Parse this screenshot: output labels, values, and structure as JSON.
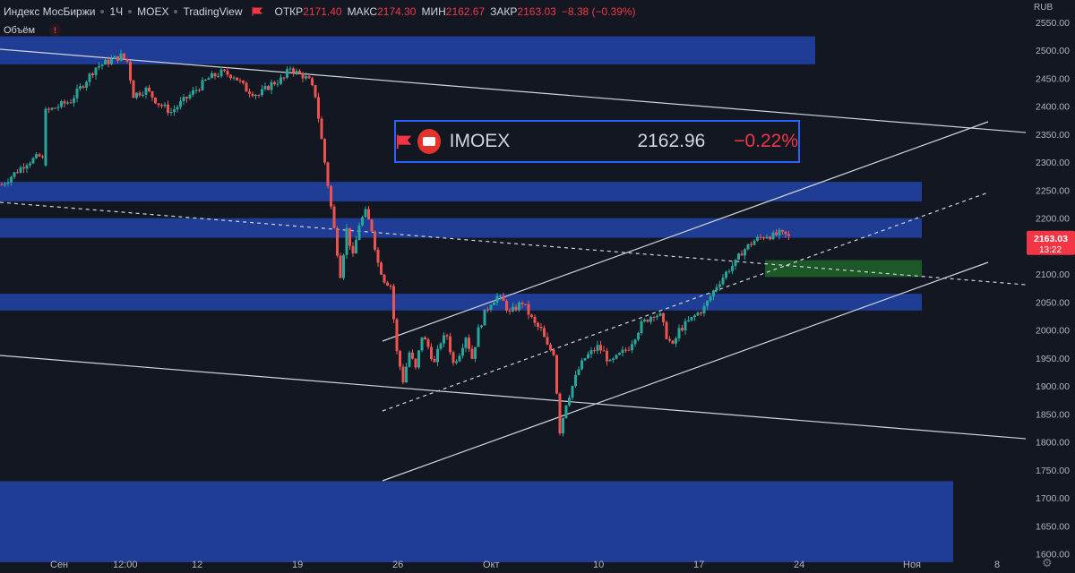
{
  "header": {
    "symbol_name": "Индекс МосБиржи",
    "interval": "1Ч",
    "exchange": "MOEX",
    "source": "TradingView",
    "ohlc": [
      {
        "label": "ОТКР",
        "value": "2171.40"
      },
      {
        "label": "МАКС",
        "value": "2174.30"
      },
      {
        "label": "МИН",
        "value": "2162.67"
      },
      {
        "label": "ЗАКР",
        "value": "2163.03"
      }
    ],
    "change": "−8.38 (−0.39%)",
    "volume_label": "Объём",
    "warning_glyph": "!"
  },
  "ticker_box": {
    "name": "IMOEX",
    "price": "2162.96",
    "change": "−0.22%"
  },
  "axis": {
    "currency": "RUB",
    "last_price": "2163.03",
    "countdown": "13:22",
    "settings_icon": "gear-icon"
  },
  "colors": {
    "background": "#131722",
    "zone": "#2244a8",
    "green_zone": "#1f5f2a",
    "up": "#26a69a",
    "down": "#ef5350",
    "trendline": "#d1d4dc",
    "price_label": "#f23645",
    "ticker_border": "#2962ff"
  },
  "chart_data": {
    "type": "candlestick",
    "title": "",
    "ylim": [
      1585,
      2590
    ],
    "ylabel": "",
    "xlabel": "",
    "grid": false,
    "y_ticks": [
      1600,
      1650,
      1700,
      1750,
      1800,
      1850,
      1900,
      1950,
      2000,
      2050,
      2100,
      2150,
      2200,
      2250,
      2300,
      2350,
      2400,
      2450,
      2500,
      2550
    ],
    "x_ticks": [
      {
        "label": "Сен",
        "bar": 10
      },
      {
        "label": "12:00",
        "bar": 20
      },
      {
        "label": "12",
        "bar": 32
      },
      {
        "label": "19",
        "bar": 48
      },
      {
        "label": "26",
        "bar": 64
      },
      {
        "label": "Окт",
        "bar": 79
      },
      {
        "label": "10",
        "bar": 96
      },
      {
        "label": "17",
        "bar": 112
      },
      {
        "label": "24",
        "bar": 128
      },
      {
        "label": "Ноя",
        "bar": 146
      },
      {
        "label": "8",
        "bar": 160
      }
    ],
    "bars_per_x_unit": 7.0,
    "close_series": [
      [
        0,
        2260
      ],
      [
        2,
        2280
      ],
      [
        4,
        2300
      ],
      [
        6,
        2310
      ],
      [
        7,
        2300
      ],
      [
        7,
        2390
      ],
      [
        9,
        2400
      ],
      [
        11,
        2410
      ],
      [
        13,
        2440
      ],
      [
        15,
        2470
      ],
      [
        17,
        2480
      ],
      [
        19,
        2490
      ],
      [
        20,
        2480
      ],
      [
        21,
        2420
      ],
      [
        23,
        2430
      ],
      [
        25,
        2405
      ],
      [
        27,
        2390
      ],
      [
        29,
        2410
      ],
      [
        31,
        2430
      ],
      [
        33,
        2450
      ],
      [
        35,
        2460
      ],
      [
        37,
        2455
      ],
      [
        39,
        2430
      ],
      [
        41,
        2420
      ],
      [
        43,
        2440
      ],
      [
        45,
        2450
      ],
      [
        46,
        2470
      ],
      [
        47,
        2460
      ],
      [
        48,
        2455
      ],
      [
        49,
        2445
      ],
      [
        50,
        2420
      ],
      [
        51,
        2340
      ],
      [
        52,
        2260
      ],
      [
        53,
        2180
      ],
      [
        54,
        2100
      ],
      [
        55,
        2180
      ],
      [
        56,
        2130
      ],
      [
        57,
        2190
      ],
      [
        58,
        2210
      ],
      [
        59,
        2180
      ],
      [
        60,
        2120
      ],
      [
        61,
        2090
      ],
      [
        62,
        2080
      ],
      [
        63,
        1960
      ],
      [
        64,
        1910
      ],
      [
        65,
        1960
      ],
      [
        66,
        1930
      ],
      [
        67,
        1990
      ],
      [
        68,
        1970
      ],
      [
        69,
        1940
      ],
      [
        70,
        1980
      ],
      [
        71,
        1990
      ],
      [
        72,
        1940
      ],
      [
        73,
        1960
      ],
      [
        74,
        1990
      ],
      [
        75,
        1950
      ],
      [
        76,
        2000
      ],
      [
        77,
        2030
      ],
      [
        78,
        2050
      ],
      [
        79,
        2060
      ],
      [
        80,
        2050
      ],
      [
        81,
        2030
      ],
      [
        82,
        2040
      ],
      [
        83,
        2050
      ],
      [
        84,
        2030
      ],
      [
        85,
        2010
      ],
      [
        86,
        2000
      ],
      [
        87,
        1970
      ],
      [
        88,
        1960
      ],
      [
        89,
        1820
      ],
      [
        90,
        1870
      ],
      [
        91,
        1900
      ],
      [
        92,
        1930
      ],
      [
        93,
        1950
      ],
      [
        94,
        1960
      ],
      [
        95,
        1970
      ],
      [
        96,
        1960
      ],
      [
        97,
        1940
      ],
      [
        98,
        1950
      ],
      [
        99,
        1960
      ],
      [
        100,
        1970
      ],
      [
        101,
        1990
      ],
      [
        102,
        2010
      ],
      [
        103,
        2020
      ],
      [
        104,
        2030
      ],
      [
        105,
        2025
      ],
      [
        106,
        1990
      ],
      [
        107,
        1970
      ],
      [
        108,
        2000
      ],
      [
        109,
        2010
      ],
      [
        110,
        2020
      ],
      [
        111,
        2030
      ],
      [
        112,
        2040
      ],
      [
        113,
        2060
      ],
      [
        114,
        2080
      ],
      [
        115,
        2095
      ],
      [
        116,
        2110
      ],
      [
        117,
        2120
      ],
      [
        118,
        2140
      ],
      [
        119,
        2150
      ],
      [
        120,
        2160
      ],
      [
        121,
        2165
      ],
      [
        122,
        2170
      ],
      [
        123,
        2168
      ],
      [
        124,
        2172
      ],
      [
        125,
        2169
      ],
      [
        126,
        2163
      ]
    ],
    "zones": [
      {
        "y_from": 2475,
        "y_to": 2525,
        "x_end_bar": 130
      },
      {
        "y_from": 2230,
        "y_to": 2265,
        "x_end_bar": 147
      },
      {
        "y_from": 2165,
        "y_to": 2200,
        "x_end_bar": 147
      },
      {
        "y_from": 2035,
        "y_to": 2065,
        "x_end_bar": 147
      },
      {
        "y_from": 1585,
        "y_to": 1730,
        "x_end_bar": 152
      }
    ],
    "green_zone": {
      "y_from": 2095,
      "y_to": 2125,
      "x_start_bar": 122,
      "x_end_bar": 147
    }
  }
}
